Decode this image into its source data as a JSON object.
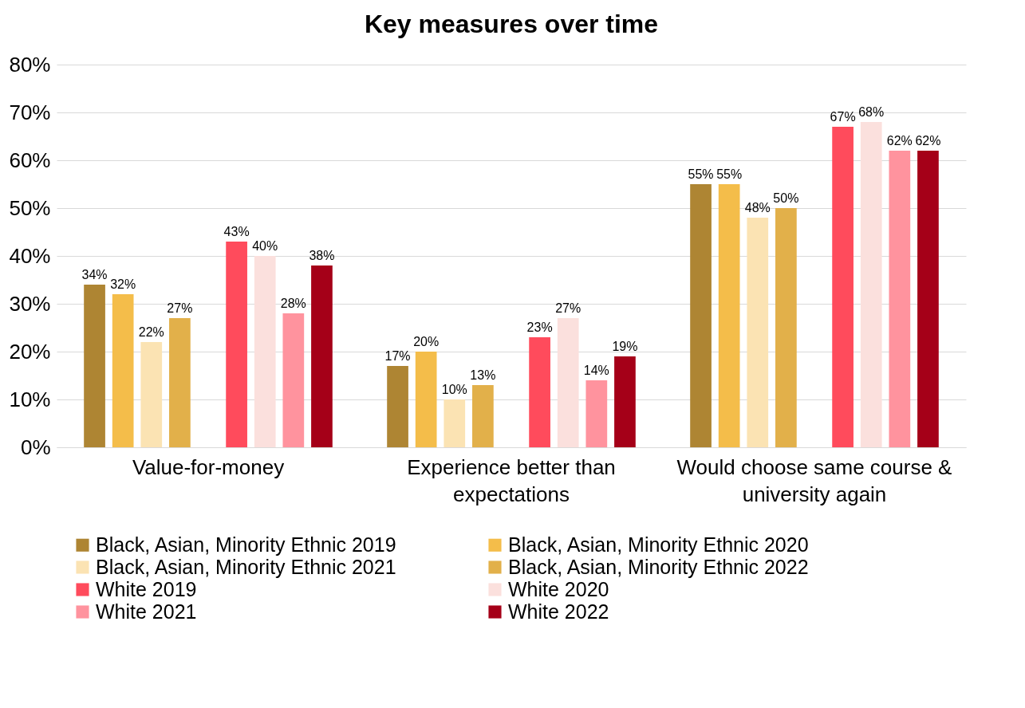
{
  "chart_data": {
    "type": "bar",
    "title": "Key measures over time",
    "categories": [
      "Value-for-money",
      "Experience better than expectations",
      "Would choose same course & university again"
    ],
    "series": [
      {
        "name": "Black, Asian, Minority Ethnic 2019",
        "color": "#ae8533",
        "values": [
          34,
          17,
          55
        ],
        "value_labels": [
          "34%",
          "17%",
          "55%"
        ]
      },
      {
        "name": "Black, Asian, Minority Ethnic 2020",
        "color": "#f4bd4a",
        "values": [
          32,
          20,
          55
        ],
        "value_labels": [
          "32%",
          "20%",
          "55%"
        ]
      },
      {
        "name": "Black, Asian, Minority Ethnic 2021",
        "color": "#fbe3b3",
        "values": [
          22,
          10,
          48
        ],
        "value_labels": [
          "22%",
          "10%",
          "48%"
        ]
      },
      {
        "name": "Black, Asian, Minority Ethnic 2022",
        "color": "#e2b04a",
        "values": [
          27,
          13,
          50
        ],
        "value_labels": [
          "27%",
          "13%",
          "50%"
        ]
      },
      {
        "name": "White 2019",
        "color": "#ff4b5c",
        "values": [
          43,
          23,
          67
        ],
        "value_labels": [
          "43%",
          "23%",
          "67%"
        ]
      },
      {
        "name": "White 2020",
        "color": "#fbe0dd",
        "values": [
          40,
          27,
          68
        ],
        "value_labels": [
          "40%",
          "27%",
          "68%"
        ]
      },
      {
        "name": "White 2021",
        "color": "#ff939e",
        "values": [
          28,
          14,
          62
        ],
        "value_labels": [
          "28%",
          "14%",
          "62%"
        ]
      },
      {
        "name": "White 2022",
        "color": "#a50018",
        "values": [
          38,
          19,
          62
        ],
        "value_labels": [
          "38%",
          "19%",
          "62%"
        ]
      }
    ],
    "ylim": [
      0,
      80
    ],
    "yticks": [
      {
        "value": 0,
        "label": "0%"
      },
      {
        "value": 10,
        "label": "10%"
      },
      {
        "value": 20,
        "label": "20%"
      },
      {
        "value": 30,
        "label": "30%"
      },
      {
        "value": 40,
        "label": "40%"
      },
      {
        "value": 50,
        "label": "50%"
      },
      {
        "value": 60,
        "label": "60%"
      },
      {
        "value": 70,
        "label": "70%"
      },
      {
        "value": 80,
        "label": "80%"
      }
    ],
    "grid": "y",
    "legend": "bottom"
  }
}
